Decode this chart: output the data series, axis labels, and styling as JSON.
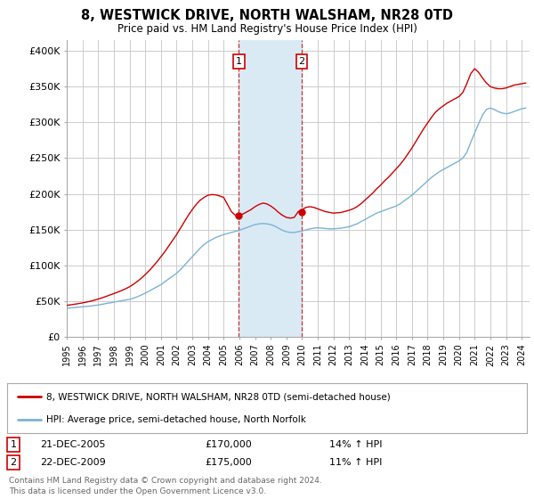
{
  "title": "8, WESTWICK DRIVE, NORTH WALSHAM, NR28 0TD",
  "subtitle": "Price paid vs. HM Land Registry's House Price Index (HPI)",
  "ylabel_ticks": [
    "£0",
    "£50K",
    "£100K",
    "£150K",
    "£200K",
    "£250K",
    "£300K",
    "£350K",
    "£400K"
  ],
  "ytick_values": [
    0,
    50000,
    100000,
    150000,
    200000,
    250000,
    300000,
    350000,
    400000
  ],
  "ylim": [
    0,
    415000
  ],
  "xlim_start": 1995.0,
  "xlim_end": 2024.5,
  "red_line_color": "#cc0000",
  "blue_line_color": "#7ab3d4",
  "transaction1_x": 2005.97,
  "transaction1_y": 170000,
  "transaction2_x": 2009.97,
  "transaction2_y": 175000,
  "transaction1_label": "21-DEC-2005",
  "transaction2_label": "22-DEC-2009",
  "transaction1_price": "£170,000",
  "transaction2_price": "£175,000",
  "transaction1_hpi": "14% ↑ HPI",
  "transaction2_hpi": "11% ↑ HPI",
  "legend_red": "8, WESTWICK DRIVE, NORTH WALSHAM, NR28 0TD (semi-detached house)",
  "legend_blue": "HPI: Average price, semi-detached house, North Norfolk",
  "footnote1": "Contains HM Land Registry data © Crown copyright and database right 2024.",
  "footnote2": "This data is licensed under the Open Government Licence v3.0.",
  "background_color": "#ffffff",
  "grid_color": "#cccccc",
  "highlight_color": "#daeaf5",
  "hpi_years": [
    1995.0,
    1995.25,
    1995.5,
    1995.75,
    1996.0,
    1996.25,
    1996.5,
    1996.75,
    1997.0,
    1997.25,
    1997.5,
    1997.75,
    1998.0,
    1998.25,
    1998.5,
    1998.75,
    1999.0,
    1999.25,
    1999.5,
    1999.75,
    2000.0,
    2000.25,
    2000.5,
    2000.75,
    2001.0,
    2001.25,
    2001.5,
    2001.75,
    2002.0,
    2002.25,
    2002.5,
    2002.75,
    2003.0,
    2003.25,
    2003.5,
    2003.75,
    2004.0,
    2004.25,
    2004.5,
    2004.75,
    2005.0,
    2005.25,
    2005.5,
    2005.75,
    2006.0,
    2006.25,
    2006.5,
    2006.75,
    2007.0,
    2007.25,
    2007.5,
    2007.75,
    2008.0,
    2008.25,
    2008.5,
    2008.75,
    2009.0,
    2009.25,
    2009.5,
    2009.75,
    2010.0,
    2010.25,
    2010.5,
    2010.75,
    2011.0,
    2011.25,
    2011.5,
    2011.75,
    2012.0,
    2012.25,
    2012.5,
    2012.75,
    2013.0,
    2013.25,
    2013.5,
    2013.75,
    2014.0,
    2014.25,
    2014.5,
    2014.75,
    2015.0,
    2015.25,
    2015.5,
    2015.75,
    2016.0,
    2016.25,
    2016.5,
    2016.75,
    2017.0,
    2017.25,
    2017.5,
    2017.75,
    2018.0,
    2018.25,
    2018.5,
    2018.75,
    2019.0,
    2019.25,
    2019.5,
    2019.75,
    2020.0,
    2020.25,
    2020.5,
    2020.75,
    2021.0,
    2021.25,
    2021.5,
    2021.75,
    2022.0,
    2022.25,
    2022.5,
    2022.75,
    2023.0,
    2023.25,
    2023.5,
    2023.75,
    2024.0,
    2024.25
  ],
  "hpi_vals": [
    40000,
    40500,
    41000,
    41500,
    42000,
    42500,
    43000,
    43800,
    44500,
    45500,
    46500,
    47500,
    48500,
    49500,
    50500,
    51500,
    52500,
    54000,
    56000,
    58500,
    61000,
    64000,
    67000,
    70000,
    73000,
    77000,
    81000,
    85000,
    89000,
    94000,
    100000,
    106000,
    112000,
    118000,
    124000,
    129000,
    133000,
    136000,
    139000,
    141000,
    143000,
    144500,
    146000,
    147500,
    149000,
    151000,
    153000,
    155000,
    157000,
    158000,
    158500,
    158000,
    157000,
    155000,
    152000,
    149000,
    147000,
    146000,
    146000,
    147000,
    148000,
    149500,
    151000,
    152000,
    152500,
    152000,
    151500,
    151000,
    151000,
    151500,
    152000,
    153000,
    154000,
    156000,
    158000,
    161000,
    164000,
    167000,
    170000,
    173000,
    175000,
    177000,
    179000,
    181000,
    183000,
    186000,
    190000,
    194000,
    198000,
    203000,
    208000,
    213000,
    218000,
    223000,
    227000,
    231000,
    234000,
    237000,
    240000,
    243000,
    246000,
    250000,
    258000,
    272000,
    285000,
    298000,
    310000,
    318000,
    320000,
    318000,
    315000,
    313000,
    312000,
    313000,
    315000,
    317000,
    319000,
    320000
  ],
  "price_years": [
    1995.0,
    1995.25,
    1995.5,
    1995.75,
    1996.0,
    1996.25,
    1996.5,
    1996.75,
    1997.0,
    1997.25,
    1997.5,
    1997.75,
    1998.0,
    1998.25,
    1998.5,
    1998.75,
    1999.0,
    1999.25,
    1999.5,
    1999.75,
    2000.0,
    2000.25,
    2000.5,
    2000.75,
    2001.0,
    2001.25,
    2001.5,
    2001.75,
    2002.0,
    2002.25,
    2002.5,
    2002.75,
    2003.0,
    2003.25,
    2003.5,
    2003.75,
    2004.0,
    2004.25,
    2004.5,
    2004.75,
    2005.0,
    2005.25,
    2005.5,
    2005.75,
    2006.0,
    2006.25,
    2006.5,
    2006.75,
    2007.0,
    2007.25,
    2007.5,
    2007.75,
    2008.0,
    2008.25,
    2008.5,
    2008.75,
    2009.0,
    2009.25,
    2009.5,
    2009.75,
    2010.0,
    2010.25,
    2010.5,
    2010.75,
    2011.0,
    2011.25,
    2011.5,
    2011.75,
    2012.0,
    2012.25,
    2012.5,
    2012.75,
    2013.0,
    2013.25,
    2013.5,
    2013.75,
    2014.0,
    2014.25,
    2014.5,
    2014.75,
    2015.0,
    2015.25,
    2015.5,
    2015.75,
    2016.0,
    2016.25,
    2016.5,
    2016.75,
    2017.0,
    2017.25,
    2017.5,
    2017.75,
    2018.0,
    2018.25,
    2018.5,
    2018.75,
    2019.0,
    2019.25,
    2019.5,
    2019.75,
    2020.0,
    2020.25,
    2020.5,
    2020.75,
    2021.0,
    2021.25,
    2021.5,
    2021.75,
    2022.0,
    2022.25,
    2022.5,
    2022.75,
    2023.0,
    2023.25,
    2023.5,
    2023.75,
    2024.0,
    2024.25
  ],
  "price_vals": [
    44000,
    44800,
    45600,
    46500,
    47500,
    48500,
    49800,
    51200,
    52800,
    54500,
    56500,
    58500,
    60500,
    62500,
    64800,
    67200,
    70000,
    73500,
    77500,
    82000,
    87000,
    92500,
    98500,
    105000,
    112000,
    119000,
    127000,
    135000,
    143000,
    152000,
    161000,
    170000,
    178000,
    185000,
    191000,
    195000,
    198000,
    199000,
    198500,
    197000,
    195000,
    185000,
    175000,
    170000,
    170000,
    172000,
    175000,
    178000,
    182000,
    185000,
    187000,
    186000,
    183000,
    179000,
    174000,
    170000,
    167000,
    166000,
    167000,
    175000,
    178000,
    181000,
    182000,
    181000,
    179000,
    177000,
    175000,
    174000,
    173000,
    173500,
    174000,
    175500,
    177000,
    179000,
    182000,
    186000,
    191000,
    196000,
    201000,
    207000,
    212000,
    218000,
    223000,
    229000,
    235000,
    241000,
    248000,
    256000,
    264000,
    273000,
    282000,
    291000,
    299000,
    307000,
    314000,
    319000,
    323000,
    327000,
    330000,
    333000,
    336000,
    342000,
    354000,
    368000,
    375000,
    370000,
    362000,
    355000,
    350000,
    348000,
    347000,
    347000,
    348000,
    350000,
    352000,
    353000,
    354000,
    355000
  ]
}
